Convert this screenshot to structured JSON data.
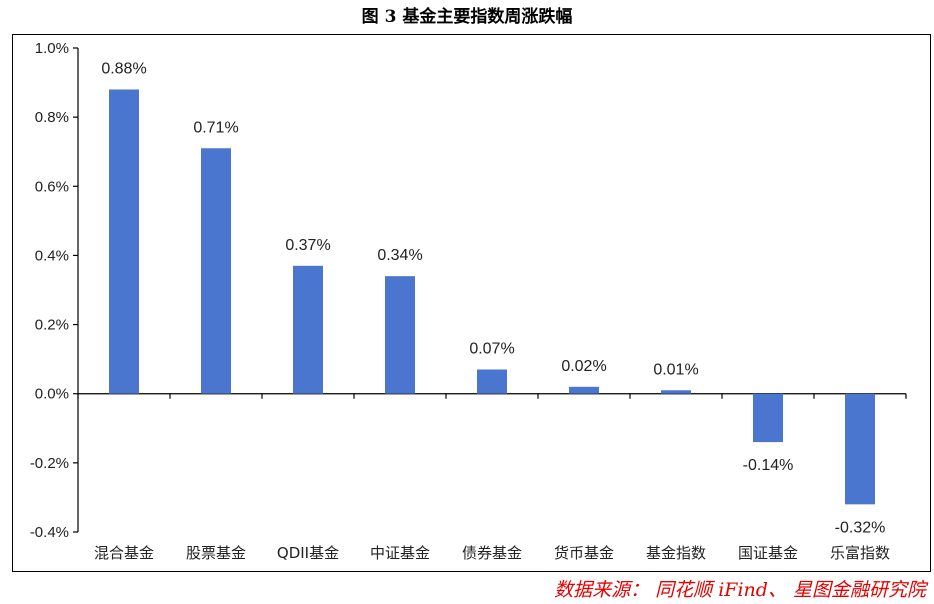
{
  "title": "图 3 基金主要指数周涨跌幅",
  "source": "数据来源： 同花顺 iFind、 星图金融研究院",
  "colors": {
    "bar": "#4a76cf",
    "axis": "#000000",
    "text": "#222222",
    "source": "#e60000"
  },
  "chart_data": {
    "type": "bar",
    "categories": [
      "混合基金",
      "股票基金",
      "QDII基金",
      "中证基金",
      "债券基金",
      "货币基金",
      "基金指数",
      "国证基金",
      "乐富指数"
    ],
    "values": [
      0.88,
      0.71,
      0.37,
      0.34,
      0.07,
      0.02,
      0.01,
      -0.14,
      -0.32
    ],
    "data_labels": [
      "0.88%",
      "0.71%",
      "0.37%",
      "0.34%",
      "0.07%",
      "0.02%",
      "0.01%",
      "-0.14%",
      "-0.32%"
    ],
    "yticks": [
      "-0.4%",
      "-0.2%",
      "0.0%",
      "0.2%",
      "0.4%",
      "0.6%",
      "0.8%",
      "1.0%"
    ],
    "ylim": [
      -0.4,
      1.0
    ],
    "ytick_step": 0.2,
    "unit": "%",
    "grid": false,
    "legend": "none"
  }
}
